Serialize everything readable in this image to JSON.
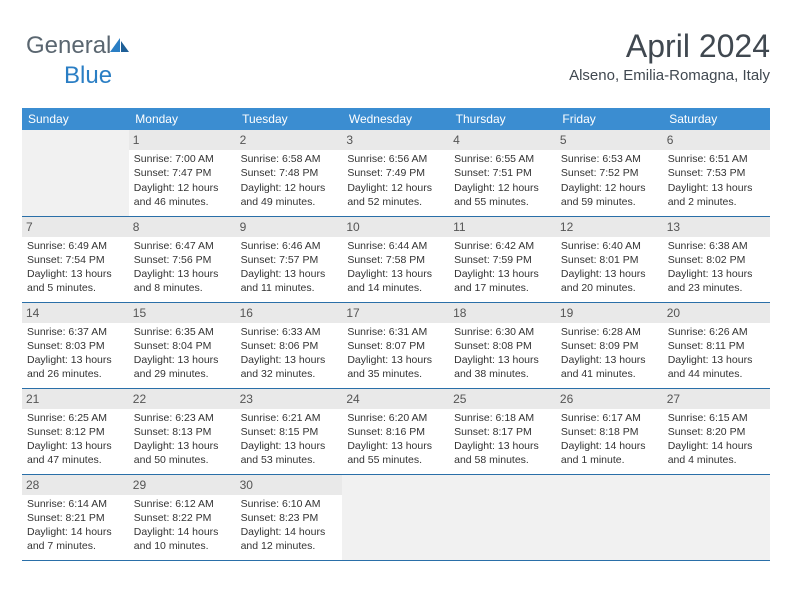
{
  "logo": {
    "text_general": "General",
    "text_blue": "Blue"
  },
  "header": {
    "month_title": "April 2024",
    "location": "Alseno, Emilia-Romagna, Italy"
  },
  "colors": {
    "header_bg": "#3b8dd1",
    "header_text": "#ffffff",
    "divider": "#2a6fa8",
    "daynum_bg": "#e9e9e9",
    "empty_bg": "#f1f1f1",
    "logo_gray": "#5a6670",
    "logo_blue": "#2a7ec4"
  },
  "calendar": {
    "day_headers": [
      "Sunday",
      "Monday",
      "Tuesday",
      "Wednesday",
      "Thursday",
      "Friday",
      "Saturday"
    ],
    "first_weekday_index": 1,
    "days": [
      {
        "n": 1,
        "sunrise": "7:00 AM",
        "sunset": "7:47 PM",
        "daylight": "12 hours and 46 minutes."
      },
      {
        "n": 2,
        "sunrise": "6:58 AM",
        "sunset": "7:48 PM",
        "daylight": "12 hours and 49 minutes."
      },
      {
        "n": 3,
        "sunrise": "6:56 AM",
        "sunset": "7:49 PM",
        "daylight": "12 hours and 52 minutes."
      },
      {
        "n": 4,
        "sunrise": "6:55 AM",
        "sunset": "7:51 PM",
        "daylight": "12 hours and 55 minutes."
      },
      {
        "n": 5,
        "sunrise": "6:53 AM",
        "sunset": "7:52 PM",
        "daylight": "12 hours and 59 minutes."
      },
      {
        "n": 6,
        "sunrise": "6:51 AM",
        "sunset": "7:53 PM",
        "daylight": "13 hours and 2 minutes."
      },
      {
        "n": 7,
        "sunrise": "6:49 AM",
        "sunset": "7:54 PM",
        "daylight": "13 hours and 5 minutes."
      },
      {
        "n": 8,
        "sunrise": "6:47 AM",
        "sunset": "7:56 PM",
        "daylight": "13 hours and 8 minutes."
      },
      {
        "n": 9,
        "sunrise": "6:46 AM",
        "sunset": "7:57 PM",
        "daylight": "13 hours and 11 minutes."
      },
      {
        "n": 10,
        "sunrise": "6:44 AM",
        "sunset": "7:58 PM",
        "daylight": "13 hours and 14 minutes."
      },
      {
        "n": 11,
        "sunrise": "6:42 AM",
        "sunset": "7:59 PM",
        "daylight": "13 hours and 17 minutes."
      },
      {
        "n": 12,
        "sunrise": "6:40 AM",
        "sunset": "8:01 PM",
        "daylight": "13 hours and 20 minutes."
      },
      {
        "n": 13,
        "sunrise": "6:38 AM",
        "sunset": "8:02 PM",
        "daylight": "13 hours and 23 minutes."
      },
      {
        "n": 14,
        "sunrise": "6:37 AM",
        "sunset": "8:03 PM",
        "daylight": "13 hours and 26 minutes."
      },
      {
        "n": 15,
        "sunrise": "6:35 AM",
        "sunset": "8:04 PM",
        "daylight": "13 hours and 29 minutes."
      },
      {
        "n": 16,
        "sunrise": "6:33 AM",
        "sunset": "8:06 PM",
        "daylight": "13 hours and 32 minutes."
      },
      {
        "n": 17,
        "sunrise": "6:31 AM",
        "sunset": "8:07 PM",
        "daylight": "13 hours and 35 minutes."
      },
      {
        "n": 18,
        "sunrise": "6:30 AM",
        "sunset": "8:08 PM",
        "daylight": "13 hours and 38 minutes."
      },
      {
        "n": 19,
        "sunrise": "6:28 AM",
        "sunset": "8:09 PM",
        "daylight": "13 hours and 41 minutes."
      },
      {
        "n": 20,
        "sunrise": "6:26 AM",
        "sunset": "8:11 PM",
        "daylight": "13 hours and 44 minutes."
      },
      {
        "n": 21,
        "sunrise": "6:25 AM",
        "sunset": "8:12 PM",
        "daylight": "13 hours and 47 minutes."
      },
      {
        "n": 22,
        "sunrise": "6:23 AM",
        "sunset": "8:13 PM",
        "daylight": "13 hours and 50 minutes."
      },
      {
        "n": 23,
        "sunrise": "6:21 AM",
        "sunset": "8:15 PM",
        "daylight": "13 hours and 53 minutes."
      },
      {
        "n": 24,
        "sunrise": "6:20 AM",
        "sunset": "8:16 PM",
        "daylight": "13 hours and 55 minutes."
      },
      {
        "n": 25,
        "sunrise": "6:18 AM",
        "sunset": "8:17 PM",
        "daylight": "13 hours and 58 minutes."
      },
      {
        "n": 26,
        "sunrise": "6:17 AM",
        "sunset": "8:18 PM",
        "daylight": "14 hours and 1 minute."
      },
      {
        "n": 27,
        "sunrise": "6:15 AM",
        "sunset": "8:20 PM",
        "daylight": "14 hours and 4 minutes."
      },
      {
        "n": 28,
        "sunrise": "6:14 AM",
        "sunset": "8:21 PM",
        "daylight": "14 hours and 7 minutes."
      },
      {
        "n": 29,
        "sunrise": "6:12 AM",
        "sunset": "8:22 PM",
        "daylight": "14 hours and 10 minutes."
      },
      {
        "n": 30,
        "sunrise": "6:10 AM",
        "sunset": "8:23 PM",
        "daylight": "14 hours and 12 minutes."
      }
    ],
    "labels": {
      "sunrise": "Sunrise:",
      "sunset": "Sunset:",
      "daylight": "Daylight:"
    }
  }
}
